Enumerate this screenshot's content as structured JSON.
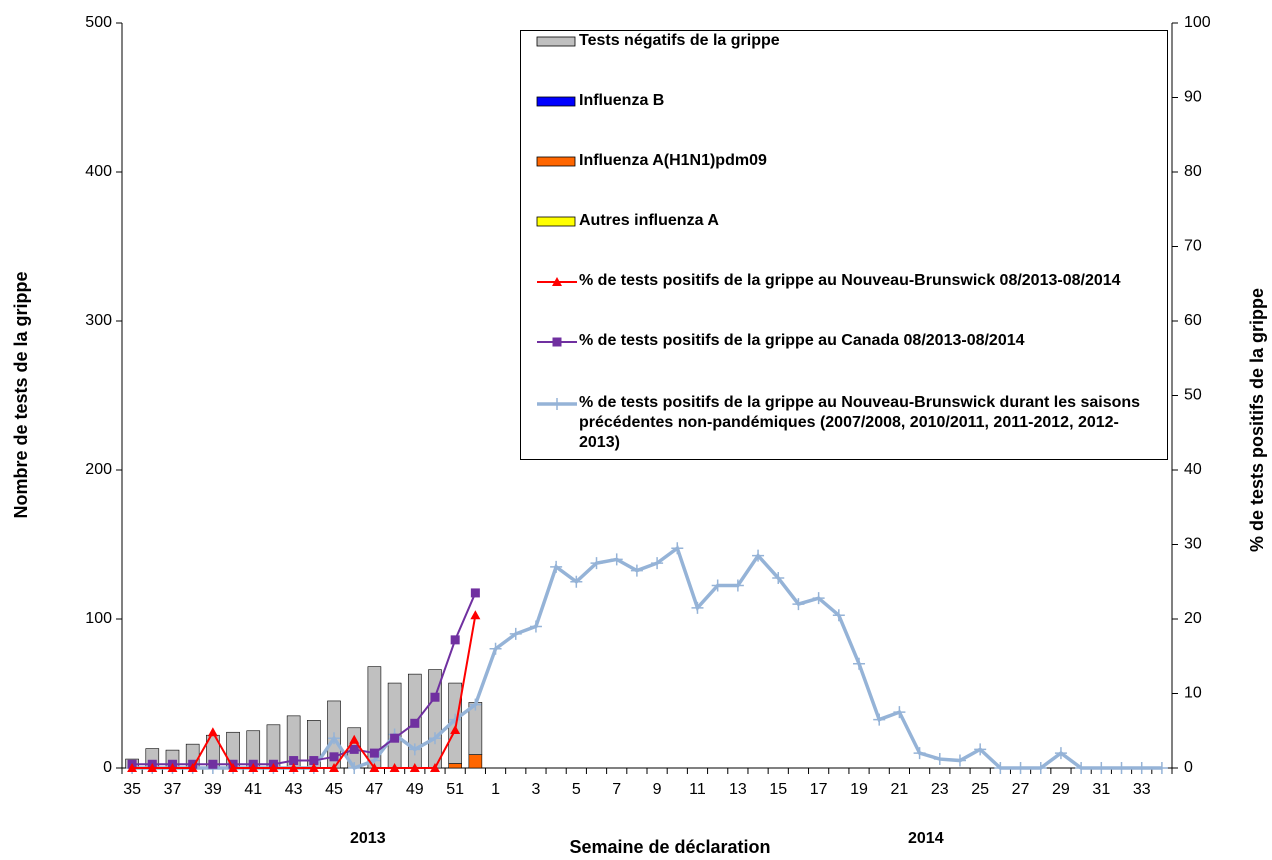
{
  "chart_data": {
    "type": "bar",
    "categories": [
      "35",
      null,
      "37",
      null,
      "39",
      null,
      "41",
      null,
      "43",
      null,
      "45",
      null,
      "47",
      null,
      "49",
      null,
      "51",
      null,
      "1",
      null,
      "3",
      null,
      "5",
      null,
      "7",
      null,
      "9",
      null,
      "11",
      null,
      "13",
      null,
      "15",
      null,
      "17",
      null,
      "19",
      null,
      "21",
      null,
      "23",
      null,
      "25",
      null,
      "27",
      null,
      "29",
      null,
      "31",
      null,
      "33",
      null
    ],
    "x_label": "Semaine de déclaration",
    "y_label": "Nombre de tests de la grippe",
    "y2_label": "% de tests positifs de la grippe",
    "annotations": [
      "2013",
      "2014"
    ],
    "ylim": [
      0,
      500
    ],
    "yticks": [
      0,
      100,
      200,
      300,
      400,
      500
    ],
    "y2lim": [
      0,
      100
    ],
    "y2ticks": [
      0,
      10,
      20,
      30,
      40,
      50,
      60,
      70,
      80,
      90,
      100
    ],
    "series": [
      {
        "name": "Tests négatifs de la grippe",
        "type": "bar",
        "color": "#c0c0c0",
        "values": [
          6,
          13,
          12,
          16,
          22,
          24,
          25,
          29,
          35,
          32,
          45,
          27,
          68,
          57,
          63,
          66,
          54,
          35,
          null,
          null,
          null,
          null,
          null,
          null,
          null,
          null,
          null,
          null,
          null,
          null,
          null,
          null,
          null,
          null,
          null,
          null,
          null,
          null,
          null,
          null,
          null,
          null,
          null,
          null,
          null,
          null,
          null,
          null,
          null,
          null,
          null,
          null
        ]
      },
      {
        "name": "Influenza B",
        "type": "bar",
        "color": "#0000ff",
        "values": [
          0,
          0,
          0,
          0,
          0,
          0,
          0,
          0,
          0,
          0,
          0,
          0,
          0,
          0,
          0,
          0,
          0,
          0,
          null,
          null,
          null,
          null,
          null,
          null,
          null,
          null,
          null,
          null,
          null,
          null,
          null,
          null,
          null,
          null,
          null,
          null,
          null,
          null,
          null,
          null,
          null,
          null,
          null,
          null,
          null,
          null,
          null,
          null,
          null,
          null,
          null,
          null
        ]
      },
      {
        "name": "Influenza A(H1N1)pdm09",
        "type": "bar",
        "color": "#ff6600",
        "values": [
          0,
          0,
          0,
          0,
          0,
          0,
          0,
          0,
          0,
          0,
          0,
          0,
          0,
          0,
          0,
          0,
          3,
          9,
          null,
          null,
          null,
          null,
          null,
          null,
          null,
          null,
          null,
          null,
          null,
          null,
          null,
          null,
          null,
          null,
          null,
          null,
          null,
          null,
          null,
          null,
          null,
          null,
          null,
          null,
          null,
          null,
          null,
          null,
          null,
          null,
          null,
          null
        ]
      },
      {
        "name": "Autres influenza A",
        "type": "bar",
        "color": "#ffff00",
        "values": [
          0,
          0,
          0,
          0,
          0,
          0,
          0,
          0,
          0,
          0,
          0,
          0,
          0,
          0,
          0,
          0,
          0,
          0,
          null,
          null,
          null,
          null,
          null,
          null,
          null,
          null,
          null,
          null,
          null,
          null,
          null,
          null,
          null,
          null,
          null,
          null,
          null,
          null,
          null,
          null,
          null,
          null,
          null,
          null,
          null,
          null,
          null,
          null,
          null,
          null,
          null,
          null
        ]
      },
      {
        "name": "% de tests positifs de la grippe  au Nouveau-Brunswick 08/2013-08/2014",
        "type": "line",
        "axis": "y2",
        "marker": "triangle",
        "color": "#ff0000",
        "values": [
          0,
          0,
          0,
          0,
          4.8,
          0,
          0,
          0,
          0,
          0,
          0,
          3.8,
          0,
          0,
          0,
          0,
          5.1,
          20.5,
          null,
          null,
          null,
          null,
          null,
          null,
          null,
          null,
          null,
          null,
          null,
          null,
          null,
          null,
          null,
          null,
          null,
          null,
          null,
          null,
          null,
          null,
          null,
          null,
          null,
          null,
          null,
          null,
          null,
          null,
          null,
          null,
          null,
          null
        ]
      },
      {
        "name": "% de tests positifs de la grippe  au Canada 08/2013-08/2014",
        "type": "line",
        "axis": "y2",
        "marker": "square",
        "color": "#7030a0",
        "values": [
          0.5,
          0.5,
          0.5,
          0.5,
          0.5,
          0.5,
          0.5,
          0.5,
          1,
          1,
          1.5,
          2.5,
          2,
          4,
          6,
          9.5,
          17.2,
          23.5,
          null,
          null,
          null,
          null,
          null,
          null,
          null,
          null,
          null,
          null,
          null,
          null,
          null,
          null,
          null,
          null,
          null,
          null,
          null,
          null,
          null,
          null,
          null,
          null,
          null,
          null,
          null,
          null,
          null,
          null,
          null,
          null,
          null,
          null
        ]
      },
      {
        "name": "% de tests positifs de la grippe  au Nouveau-Brunswick durant les saisons précédentes non-pandémiques (2007/2008, 2010/2011, 2011-2012, 2012-2013)",
        "type": "line",
        "axis": "y2",
        "marker": "plus",
        "color": "#95b3d7",
        "values": [
          0,
          0,
          0,
          0,
          0,
          0,
          0,
          0,
          0,
          0,
          4,
          0,
          1,
          4.5,
          2.5,
          4,
          6.5,
          8.5,
          16,
          18,
          19,
          27,
          25,
          27.5,
          28,
          26.5,
          27.5,
          29.5,
          21.5,
          24.5,
          24.5,
          28.5,
          25.5,
          22,
          22.8,
          20.5,
          14,
          6.5,
          7.5,
          2,
          1.2,
          1,
          2.5,
          0,
          0,
          0,
          2,
          0,
          0,
          0,
          0,
          0
        ]
      }
    ]
  }
}
